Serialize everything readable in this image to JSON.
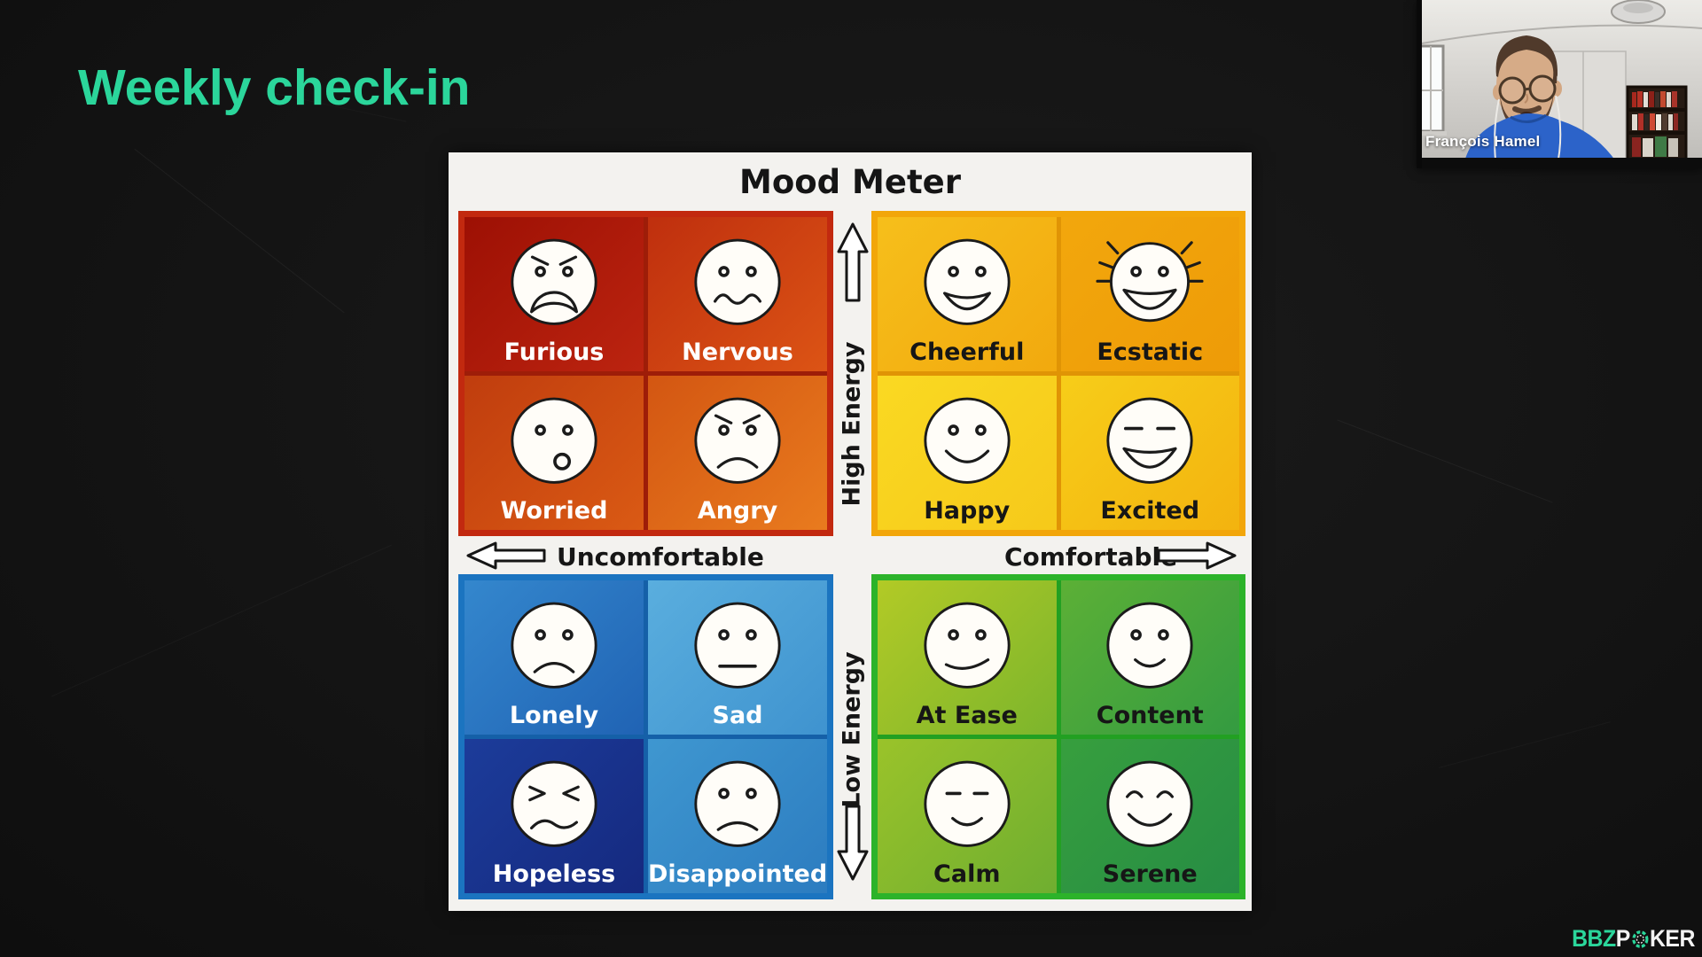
{
  "slide": {
    "title": "Weekly check-in",
    "title_color": "#2bd69b",
    "background_color": "#141414"
  },
  "mood_meter": {
    "title": "Mood Meter",
    "panel_color": "#f3f2ef",
    "axes": {
      "high_energy": "High Energy",
      "low_energy": "Low Energy",
      "uncomfortable": "Uncomfortable",
      "comfortable": "Comfortable"
    },
    "quadrants": [
      {
        "name": "high-energy-uncomfortable",
        "border_color": "#c2290f",
        "gap_color": "#9e1d08",
        "label_color": "#ffffff",
        "cells": [
          {
            "label": "Furious",
            "expression": "furious",
            "bg_from": "#9d1004",
            "bg_to": "#bc2410"
          },
          {
            "label": "Nervous",
            "expression": "nervous",
            "bg_from": "#bf2f0e",
            "bg_to": "#dc5415"
          },
          {
            "label": "Worried",
            "expression": "worried",
            "bg_from": "#c03d0e",
            "bg_to": "#da5a14"
          },
          {
            "label": "Angry",
            "expression": "angry",
            "bg_from": "#d35612",
            "bg_to": "#e97b1e"
          }
        ]
      },
      {
        "name": "high-energy-comfortable",
        "border_color": "#f2a60a",
        "gap_color": "#e09405",
        "label_color": "#161616",
        "cells": [
          {
            "label": "Cheerful",
            "expression": "cheerful",
            "bg_from": "#f6bf1b",
            "bg_to": "#f2a90e"
          },
          {
            "label": "Ecstatic",
            "expression": "ecstatic",
            "bg_from": "#f2a70d",
            "bg_to": "#ee9b07"
          },
          {
            "label": "Happy",
            "expression": "happy",
            "bg_from": "#fad922",
            "bg_to": "#f6c91a"
          },
          {
            "label": "Excited",
            "expression": "excited",
            "bg_from": "#f7cd19",
            "bg_to": "#f3b30f"
          }
        ]
      },
      {
        "name": "low-energy-uncomfortable",
        "border_color": "#1b74c0",
        "gap_color": "#1560a8",
        "label_color": "#ffffff",
        "cells": [
          {
            "label": "Lonely",
            "expression": "lonely",
            "bg_from": "#3487cd",
            "bg_to": "#2063b4"
          },
          {
            "label": "Sad",
            "expression": "sad",
            "bg_from": "#5aaede",
            "bg_to": "#3f93cf"
          },
          {
            "label": "Hopeless",
            "expression": "hopeless",
            "bg_from": "#1c3c9a",
            "bg_to": "#15297f"
          },
          {
            "label": "Disappointed",
            "expression": "disappointed",
            "bg_from": "#3f97d0",
            "bg_to": "#2c7cc0"
          }
        ]
      },
      {
        "name": "low-energy-comfortable",
        "border_color": "#2cb32a",
        "gap_color": "#22a022",
        "label_color": "#161616",
        "cells": [
          {
            "label": "At Ease",
            "expression": "atease",
            "bg_from": "#b2ca26",
            "bg_to": "#7cb52c"
          },
          {
            "label": "Content",
            "expression": "content",
            "bg_from": "#5cb036",
            "bg_to": "#349b41"
          },
          {
            "label": "Calm",
            "expression": "calm",
            "bg_from": "#9ac32a",
            "bg_to": "#6fae30"
          },
          {
            "label": "Serene",
            "expression": "serene",
            "bg_from": "#379f3e",
            "bg_to": "#268c44"
          }
        ]
      }
    ]
  },
  "webcam": {
    "name": "François Hamel",
    "shirt_color": "#2c63c9"
  },
  "logo": {
    "bbz": "BBZ",
    "p": "P",
    "ker": "KER",
    "green": "#2bd69b",
    "white": "#f2f2f2"
  }
}
